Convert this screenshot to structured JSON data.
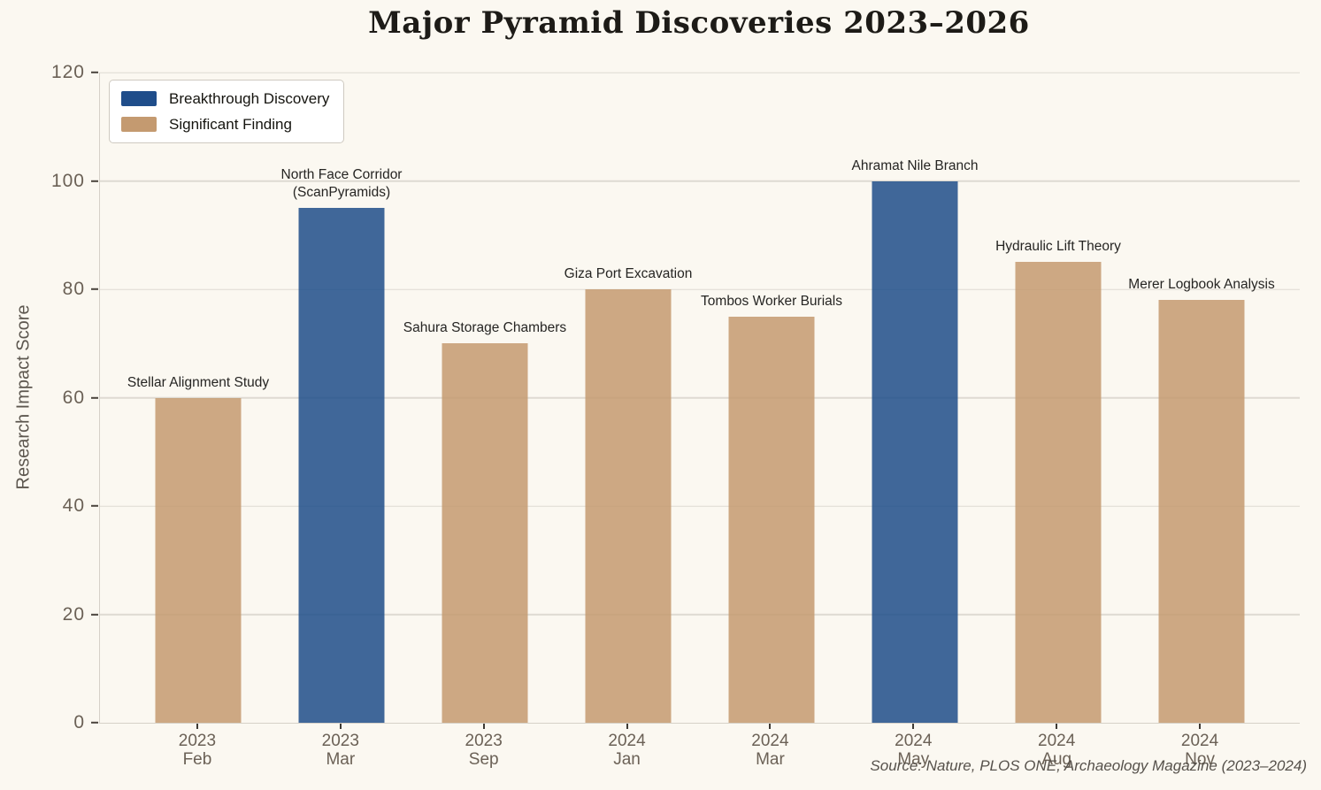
{
  "chart_data": {
    "type": "bar",
    "title": "Major Pyramid Discoveries 2023–2026",
    "xlabel": "",
    "ylabel": "Research Impact Score",
    "ylim": [
      0,
      120
    ],
    "yticks": [
      0,
      20,
      40,
      60,
      80,
      100,
      120
    ],
    "grid": true,
    "legend_position": "upper left",
    "legend": [
      {
        "label": "Breakthrough Discovery",
        "series": "breakthrough",
        "color": "#1f4d8a"
      },
      {
        "label": "Significant Finding",
        "series": "significant",
        "color": "#c49a70"
      }
    ],
    "categories": [
      "2023 Feb",
      "2023 Mar",
      "2023 Sep",
      "2024 Jan",
      "2024 Mar",
      "2024 May",
      "2024 Aug",
      "2024 Nov"
    ],
    "bars": [
      {
        "year": "2023",
        "month": "Feb",
        "label": "Stellar Alignment Study",
        "value": 60,
        "series": "significant"
      },
      {
        "year": "2023",
        "month": "Mar",
        "label": "North Face Corridor\n(ScanPyramids)",
        "value": 95,
        "series": "breakthrough"
      },
      {
        "year": "2023",
        "month": "Sep",
        "label": "Sahura Storage Chambers",
        "value": 70,
        "series": "significant"
      },
      {
        "year": "2024",
        "month": "Jan",
        "label": "Giza Port Excavation",
        "value": 80,
        "series": "significant"
      },
      {
        "year": "2024",
        "month": "Mar",
        "label": "Tombos Worker Burials",
        "value": 75,
        "series": "significant"
      },
      {
        "year": "2024",
        "month": "May",
        "label": "Ahramat Nile Branch",
        "value": 100,
        "series": "breakthrough"
      },
      {
        "year": "2024",
        "month": "Aug",
        "label": "Hydraulic Lift Theory",
        "value": 85,
        "series": "significant"
      },
      {
        "year": "2024",
        "month": "Nov",
        "label": "Merer Logbook Analysis",
        "value": 78,
        "series": "significant"
      }
    ]
  },
  "source_note": "Source: Nature, PLOS ONE, Archaeology Magazine (2023–2024)",
  "colors": {
    "background": "#fbf8f1",
    "breakthrough": "#1f4d8a",
    "significant": "#c49a70",
    "bar_alpha": 0.85,
    "gridline": "#dedad2",
    "axis_spine": "#d6d1c8",
    "tick_text": "#6b6156",
    "bar_label_text": "#262523",
    "title_text": "#1d1b17",
    "source_text": "#56514b"
  }
}
